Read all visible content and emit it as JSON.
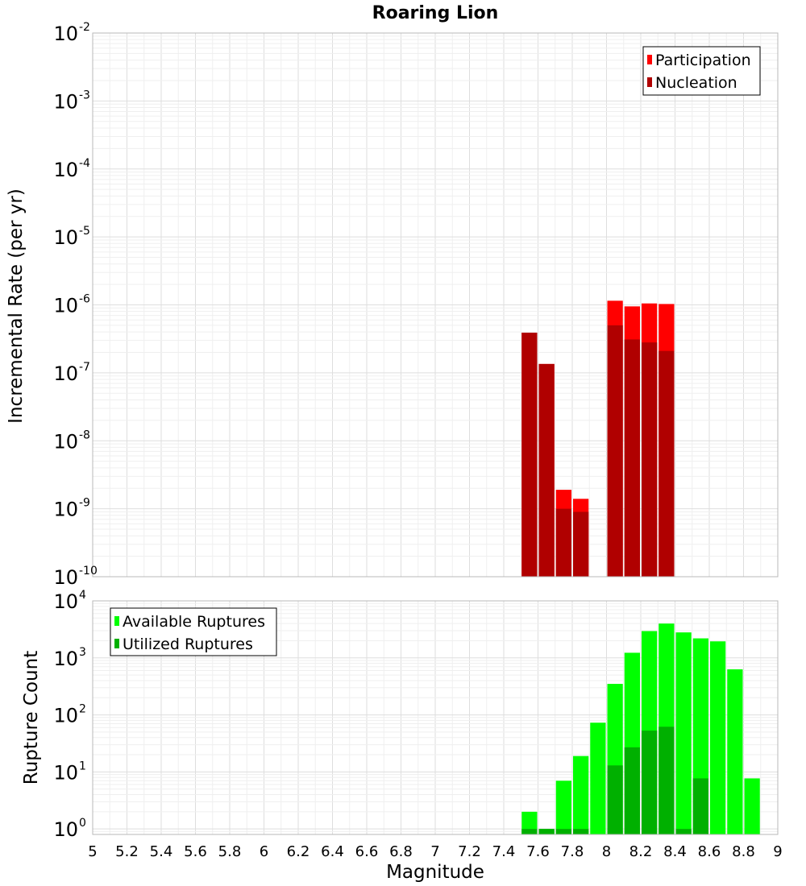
{
  "title": "Roaring Lion",
  "colors": {
    "participation": "#ff0000",
    "nucleation": "#b00000",
    "available": "#00ff00",
    "utilized": "#00b000"
  },
  "chart_data": [
    {
      "type": "bar",
      "panel": "top",
      "title": "Roaring Lion",
      "xlabel": "Magnitude",
      "ylabel": "Incremental Rate (per yr)",
      "yscale": "log",
      "ylim": [
        1e-10,
        0.01
      ],
      "xlim": [
        5,
        9
      ],
      "grid": true,
      "legend_position": "top-right",
      "series": [
        {
          "name": "Participation",
          "x": [
            7.55,
            7.65,
            7.75,
            7.85,
            8.05,
            8.15,
            8.25,
            8.35
          ],
          "values": [
            3.9e-07,
            1.35e-07,
            1.9e-09,
            1.4e-09,
            1.15e-06,
            9.5e-07,
            1.05e-06,
            1.03e-06
          ]
        },
        {
          "name": "Nucleation",
          "x": [
            7.55,
            7.65,
            7.75,
            7.85,
            8.05,
            8.15,
            8.25,
            8.35
          ],
          "values": [
            3.9e-07,
            1.35e-07,
            1e-09,
            9e-10,
            5e-07,
            3.1e-07,
            2.8e-07,
            2.1e-07
          ]
        }
      ]
    },
    {
      "type": "bar",
      "panel": "bottom",
      "xlabel": "Magnitude",
      "ylabel": "Rupture Count",
      "yscale": "log",
      "ylim": [
        0.8,
        10000
      ],
      "xlim": [
        5,
        9
      ],
      "grid": true,
      "legend_position": "top-left",
      "x_ticks": [
        "5",
        "5.2",
        "5.4",
        "5.6",
        "5.8",
        "6",
        "6.2",
        "6.4",
        "6.6",
        "6.8",
        "7",
        "7.2",
        "7.4",
        "7.6",
        "7.8",
        "8",
        "8.2",
        "8.4",
        "8.6",
        "8.8",
        "9"
      ],
      "series": [
        {
          "name": "Available Ruptures",
          "x": [
            7.55,
            7.65,
            7.75,
            7.85,
            7.95,
            8.05,
            8.15,
            8.25,
            8.35,
            8.45,
            8.55,
            8.65,
            8.75,
            8.85
          ],
          "values": [
            2,
            1,
            7,
            19,
            73,
            350,
            1230,
            2950,
            4000,
            2800,
            2200,
            1950,
            630,
            7.7
          ]
        },
        {
          "name": "Utilized Ruptures",
          "x": [
            7.55,
            7.65,
            7.75,
            7.85,
            7.95,
            8.05,
            8.15,
            8.25,
            8.35,
            8.45,
            8.55,
            8.65,
            8.75,
            8.85
          ],
          "values": [
            1,
            1,
            1,
            1,
            0,
            13,
            27,
            53,
            62,
            1,
            7.7,
            0,
            0,
            0
          ]
        }
      ]
    }
  ]
}
